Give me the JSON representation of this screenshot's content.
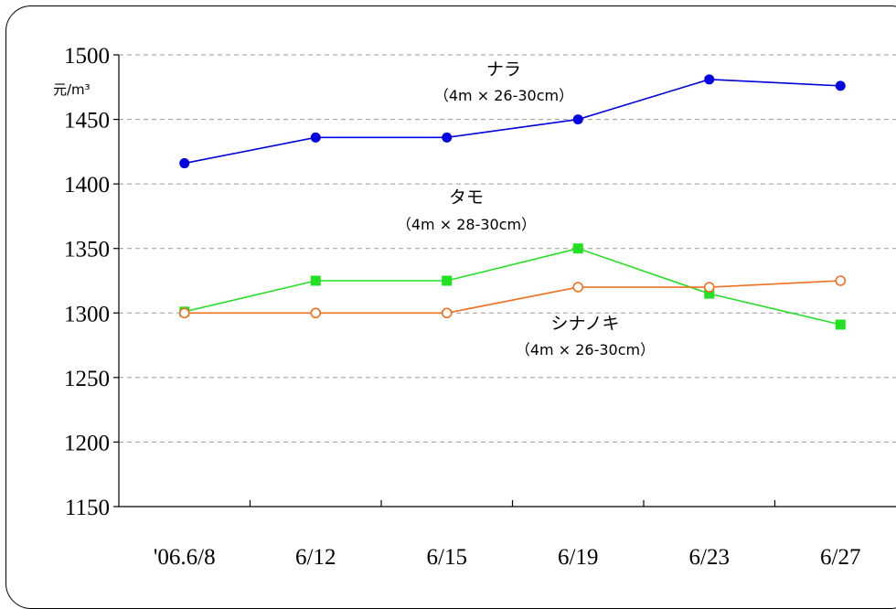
{
  "chart_data": {
    "type": "line",
    "unit_label": "元/m³",
    "categories": [
      "'06.6/8",
      "6/12",
      "6/15",
      "6/19",
      "6/23",
      "6/27"
    ],
    "ylim": [
      1150,
      1500
    ],
    "yticks": [
      1150,
      1200,
      1250,
      1300,
      1350,
      1400,
      1450,
      1500
    ],
    "grid": true,
    "series": [
      {
        "name": "ナラ",
        "spec": "（4m × 26-30cm）",
        "color": "#0000e0",
        "marker": "filled-circle",
        "values": [
          1416,
          1436,
          1436,
          1450,
          1481,
          1476
        ]
      },
      {
        "name": "タモ",
        "spec": "（4m × 28-30cm）",
        "color": "#22e022",
        "marker": "filled-square",
        "values": [
          1301,
          1325,
          1325,
          1350,
          1315,
          1291
        ]
      },
      {
        "name": "シナノキ",
        "spec": "（4m × 26-30cm）",
        "color": "#f07020",
        "marker": "hollow-circle",
        "values": [
          1300,
          1300,
          1300,
          1320,
          1320,
          1325
        ]
      }
    ]
  }
}
